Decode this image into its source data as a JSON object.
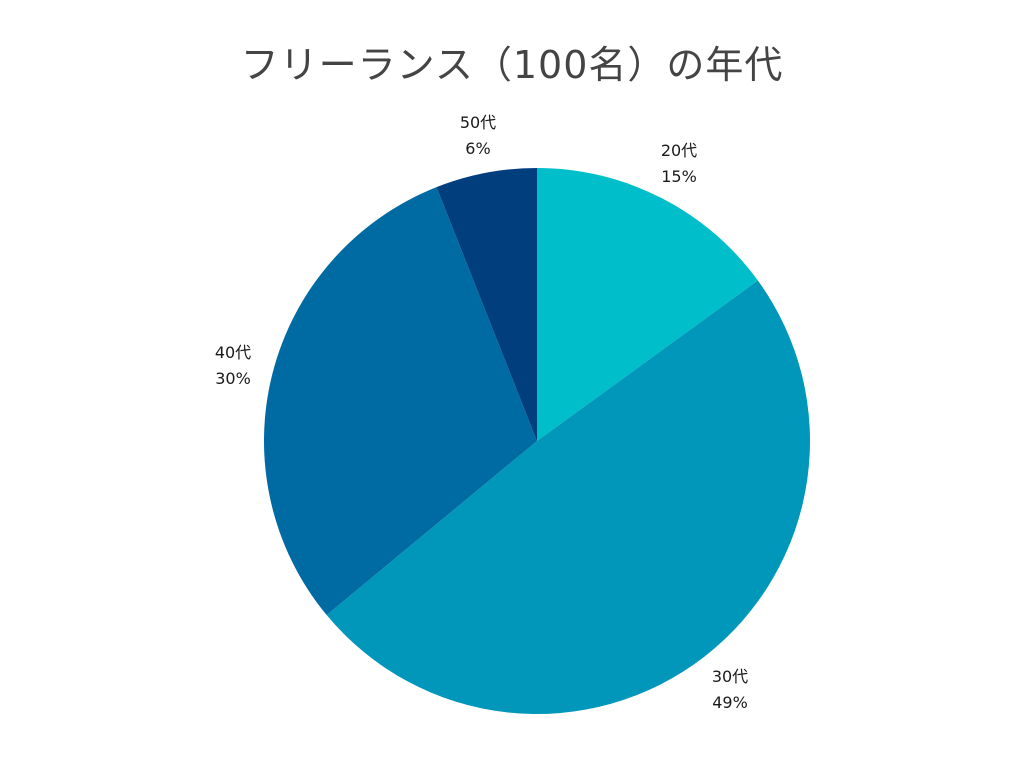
{
  "chart_data": {
    "type": "pie",
    "title": "フリーランス（100名）の年代",
    "categories": [
      "20代",
      "30代",
      "40代",
      "50代"
    ],
    "values": [
      15,
      49,
      30,
      6
    ],
    "value_labels": [
      "15%",
      "49%",
      "30%",
      "6%"
    ],
    "colors": [
      "#00BFCB",
      "#0097BA",
      "#006AA3",
      "#003E7E"
    ],
    "start_angle": "12 o'clock, clockwise",
    "legend": "none (inline data labels)"
  },
  "labels": [
    {
      "name": "20代",
      "pct": "15%"
    },
    {
      "name": "30代",
      "pct": "49%"
    },
    {
      "name": "40代",
      "pct": "30%"
    },
    {
      "name": "50代",
      "pct": "6%"
    }
  ]
}
